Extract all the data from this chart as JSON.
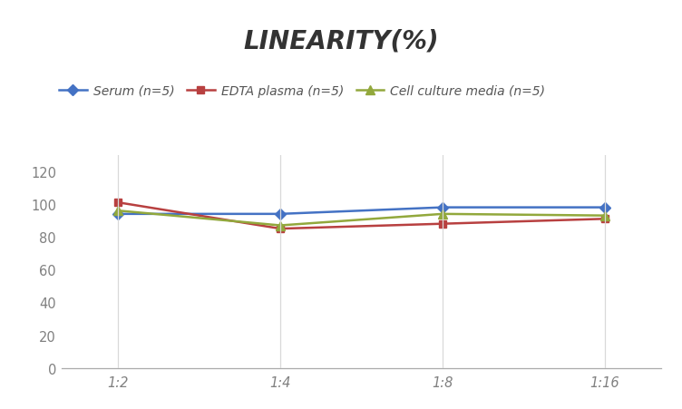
{
  "title": "LINEARITY(%)",
  "x_labels": [
    "1:2",
    "1:4",
    "1:8",
    "1:16"
  ],
  "x_positions": [
    0,
    1,
    2,
    3
  ],
  "series": [
    {
      "label": "Serum (n=5)",
      "values": [
        94,
        94,
        98,
        98
      ],
      "color": "#4472C4",
      "marker": "D",
      "marker_size": 6,
      "linewidth": 1.8
    },
    {
      "label": "EDTA plasma (n=5)",
      "values": [
        101,
        85,
        88,
        91
      ],
      "color": "#B84040",
      "marker": "s",
      "marker_size": 6,
      "linewidth": 1.8
    },
    {
      "label": "Cell culture media (n=5)",
      "values": [
        96,
        87,
        94,
        93
      ],
      "color": "#92A83C",
      "marker": "^",
      "marker_size": 7,
      "linewidth": 1.8
    }
  ],
  "ylim": [
    0,
    130
  ],
  "yticks": [
    0,
    20,
    40,
    60,
    80,
    100,
    120
  ],
  "background_color": "#ffffff",
  "grid_color": "#d9d9d9",
  "title_fontsize": 20,
  "legend_fontsize": 10,
  "tick_fontsize": 10.5,
  "tick_color": "#808080"
}
